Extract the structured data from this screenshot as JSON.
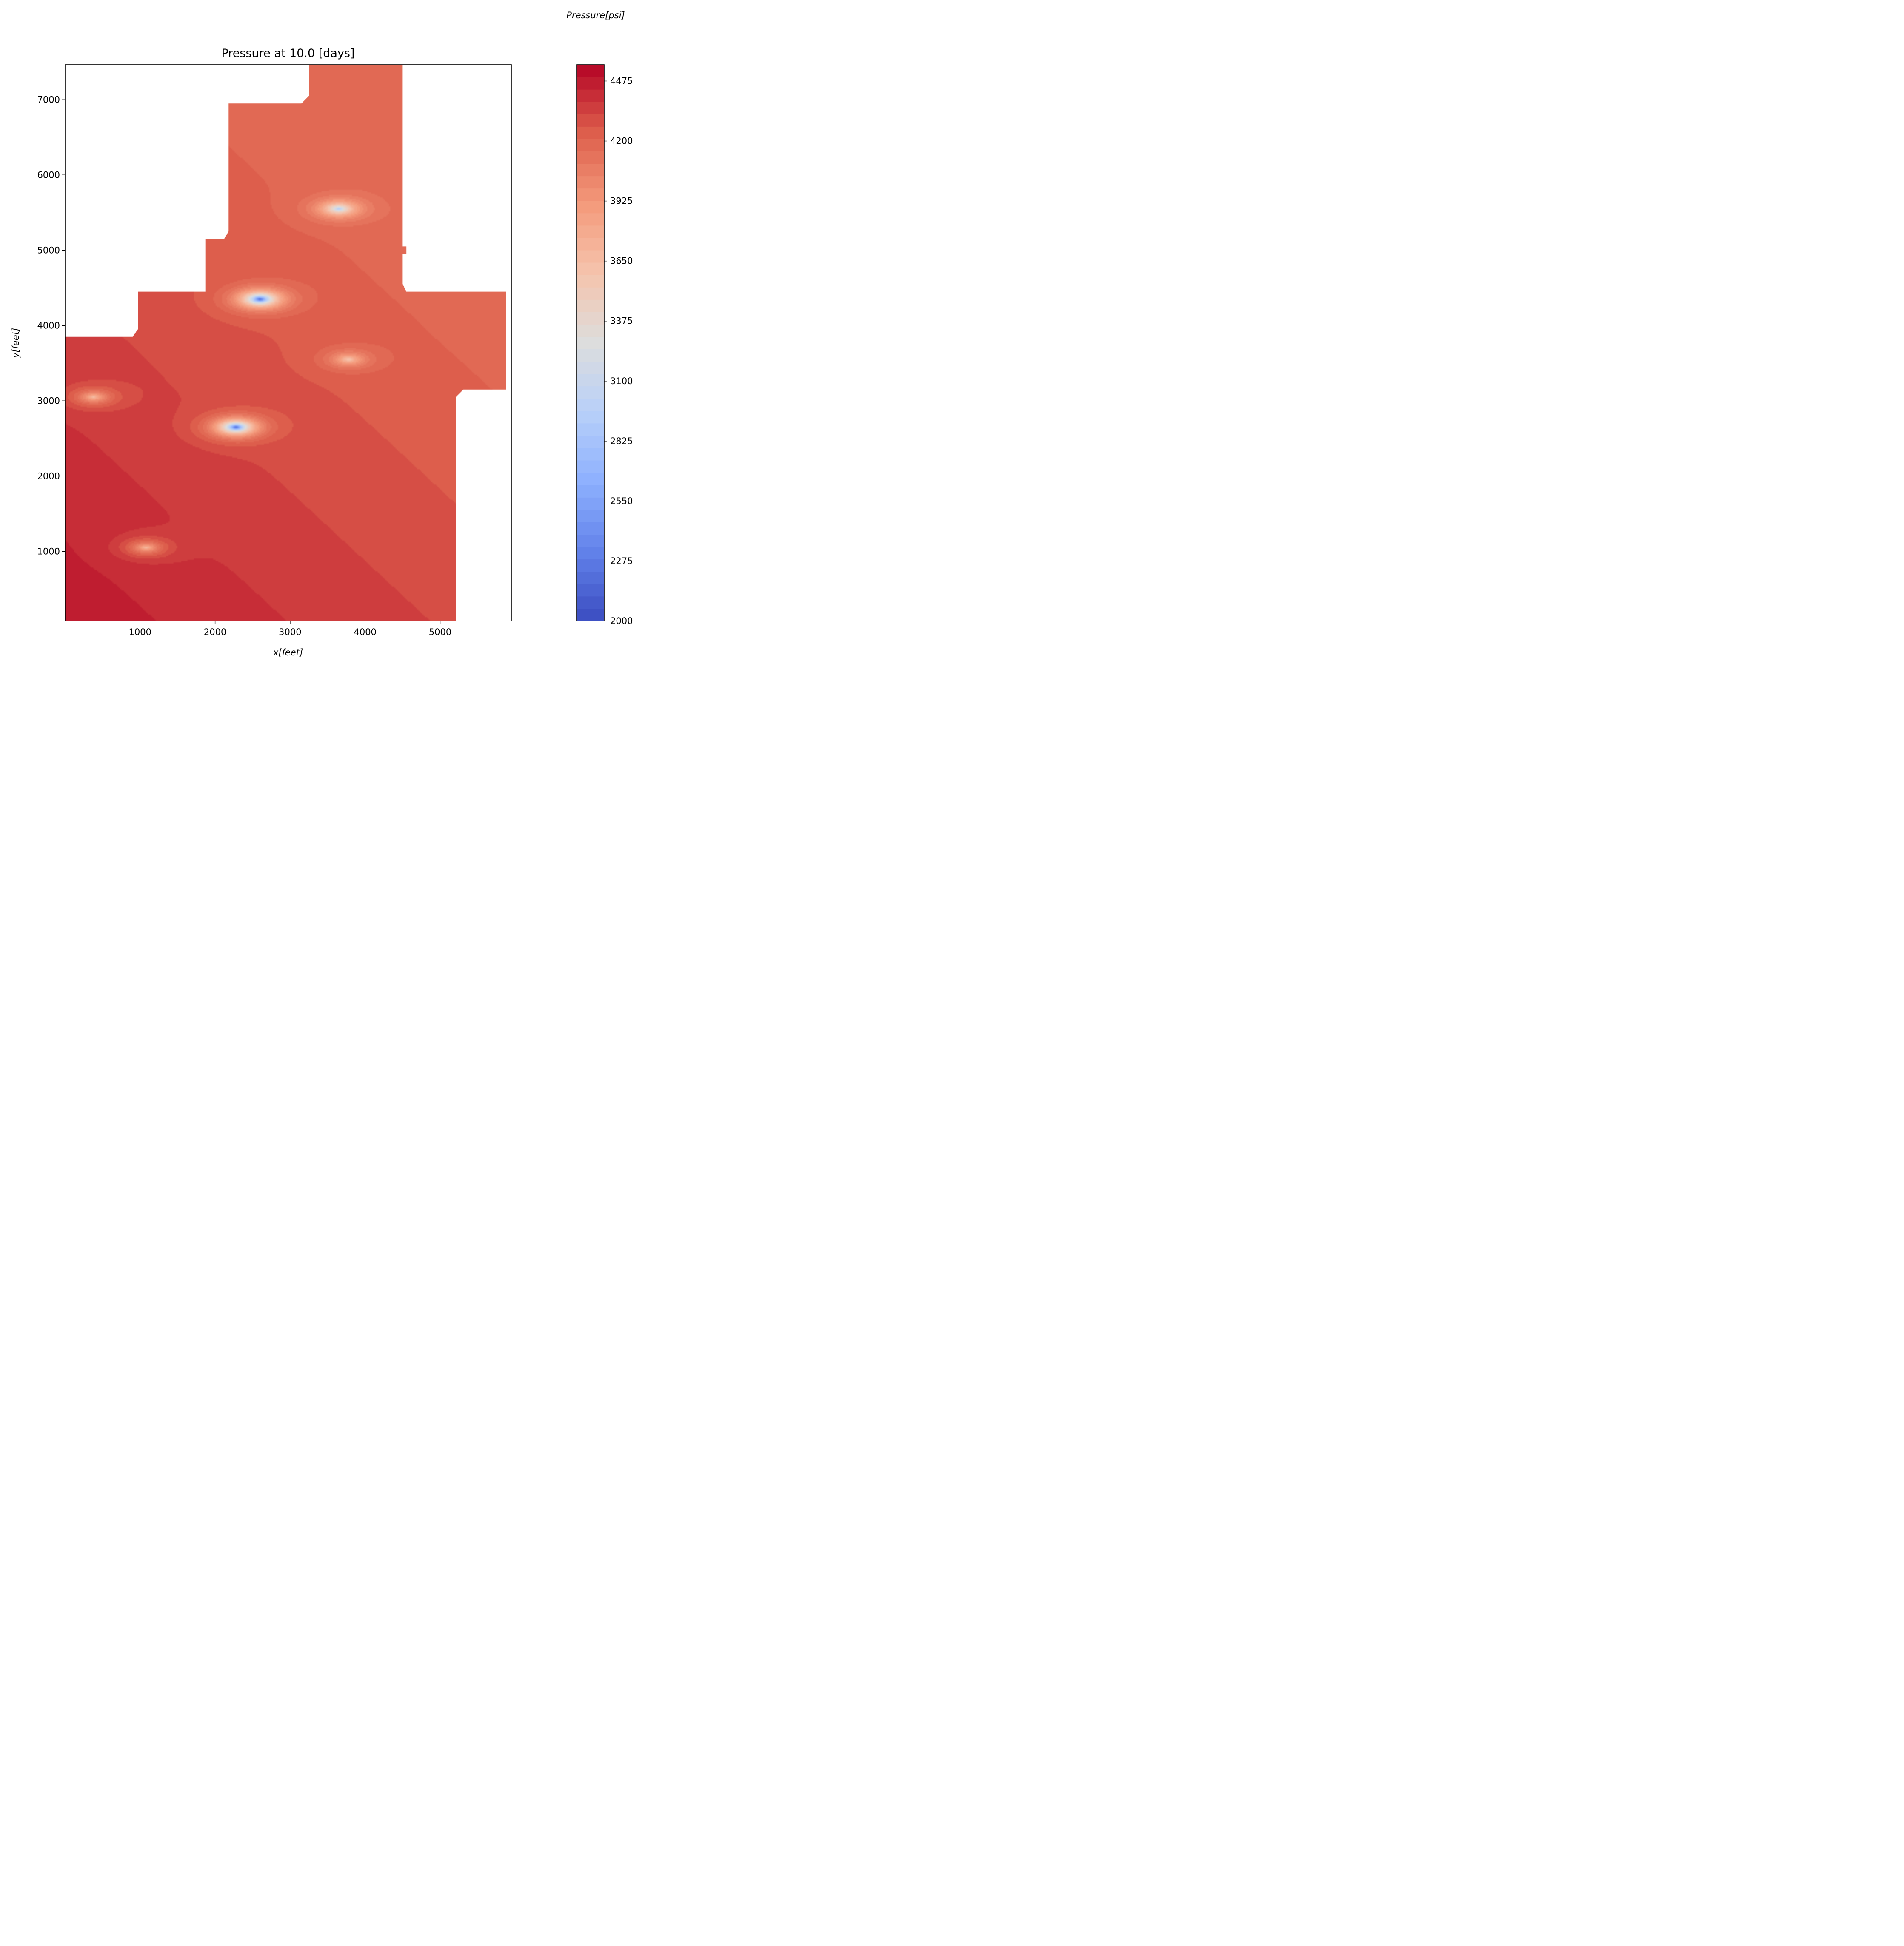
{
  "chart_data": {
    "type": "heatmap",
    "subtype": "filled-contour",
    "title": "Pressure at 10.0 [days]",
    "xlabel": "x[feet]",
    "ylabel": "y[feet]",
    "xlim": [
      0,
      5950
    ],
    "ylim": [
      75,
      7465
    ],
    "xticks": [
      1000,
      2000,
      3000,
      4000,
      5000
    ],
    "yticks": [
      1000,
      2000,
      3000,
      4000,
      5000,
      6000,
      7000
    ],
    "grid": false,
    "colormap": "coolwarm",
    "colorbar": {
      "label": "Pressure[psi]",
      "range": [
        2000,
        4550
      ],
      "ticks": [
        2000,
        2275,
        2550,
        2825,
        3100,
        3375,
        3650,
        3925,
        4200,
        4475
      ]
    },
    "field": {
      "description_free": true,
      "base_pressure_gradient": {
        "at_origin": 4490,
        "at_top_right": 4180
      },
      "wells": [
        {
          "x": 2600,
          "y": 4350,
          "min_pressure": 2200
        },
        {
          "x": 2280,
          "y": 2650,
          "min_pressure": 2200
        },
        {
          "x": 3650,
          "y": 5550,
          "min_pressure": 3100
        },
        {
          "x": 3780,
          "y": 3550,
          "min_pressure": 3700
        },
        {
          "x": 380,
          "y": 3050,
          "min_pressure": 3700
        },
        {
          "x": 1080,
          "y": 1050,
          "min_pressure": 3700
        }
      ]
    },
    "domain_outline": [
      [
        0,
        75
      ],
      [
        5210,
        75
      ],
      [
        5210,
        3050
      ],
      [
        5310,
        3150
      ],
      [
        5880,
        3150
      ],
      [
        5880,
        4450
      ],
      [
        4550,
        4450
      ],
      [
        4500,
        4550
      ],
      [
        4500,
        4950
      ],
      [
        4550,
        4950
      ],
      [
        4550,
        5050
      ],
      [
        4500,
        5050
      ],
      [
        4500,
        7465
      ],
      [
        3250,
        7465
      ],
      [
        3250,
        7050
      ],
      [
        3150,
        6950
      ],
      [
        2180,
        6950
      ],
      [
        2180,
        5250
      ],
      [
        2120,
        5150
      ],
      [
        1870,
        5150
      ],
      [
        1870,
        4450
      ],
      [
        970,
        4450
      ],
      [
        970,
        3950
      ],
      [
        900,
        3850
      ],
      [
        0,
        3850
      ]
    ]
  }
}
